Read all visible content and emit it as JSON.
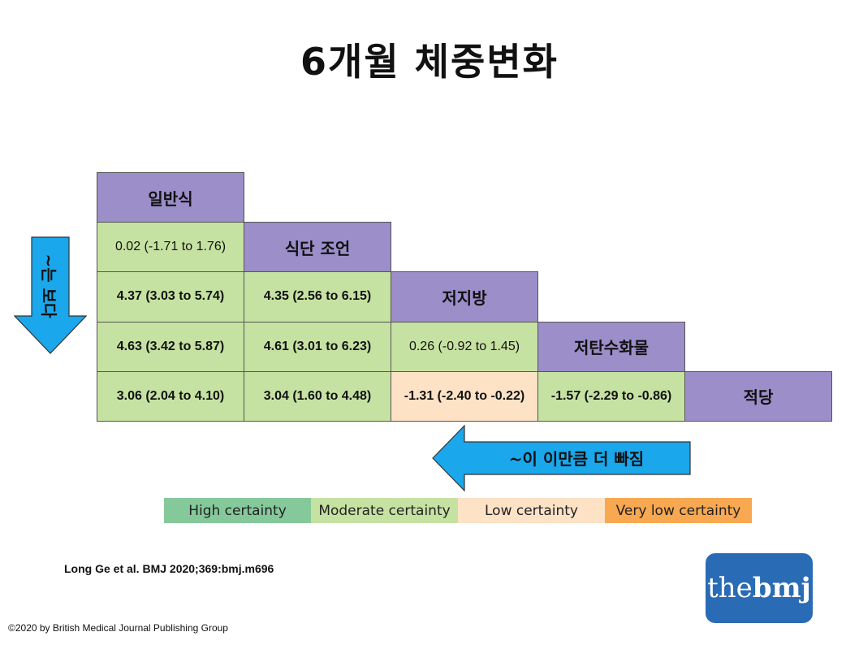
{
  "title": "6개월 체중변화",
  "chart_data": {
    "type": "table",
    "diets": [
      "일반식",
      "식단 조언",
      "저지방",
      "저탄수화물",
      "적당"
    ],
    "rows": [
      {
        "diet": "일반식",
        "cells": []
      },
      {
        "diet": "식단 조언",
        "cells": [
          {
            "text": "0.02 (-1.71 to 1.76)",
            "estimate": 0.02,
            "ci": [
              -1.71,
              1.76
            ],
            "certainty": "Moderate certainty",
            "bold": false
          }
        ]
      },
      {
        "diet": "저지방",
        "cells": [
          {
            "text": "4.37 (3.03 to 5.74)",
            "estimate": 4.37,
            "ci": [
              3.03,
              5.74
            ],
            "certainty": "Moderate certainty",
            "bold": true
          },
          {
            "text": "4.35 (2.56 to 6.15)",
            "estimate": 4.35,
            "ci": [
              2.56,
              6.15
            ],
            "certainty": "Moderate certainty",
            "bold": true
          }
        ]
      },
      {
        "diet": "저탄수화물",
        "cells": [
          {
            "text": "4.63 (3.42 to 5.87)",
            "estimate": 4.63,
            "ci": [
              3.42,
              5.87
            ],
            "certainty": "Moderate certainty",
            "bold": true
          },
          {
            "text": "4.61 (3.01 to 6.23)",
            "estimate": 4.61,
            "ci": [
              3.01,
              6.23
            ],
            "certainty": "Moderate certainty",
            "bold": true
          },
          {
            "text": "0.26 (-0.92 to 1.45)",
            "estimate": 0.26,
            "ci": [
              -0.92,
              1.45
            ],
            "certainty": "Moderate certainty",
            "bold": false
          }
        ]
      },
      {
        "diet": "적당",
        "cells": [
          {
            "text": "3.06 (2.04 to 4.10)",
            "estimate": 3.06,
            "ci": [
              2.04,
              4.1
            ],
            "certainty": "Moderate certainty",
            "bold": true
          },
          {
            "text": "3.04 (1.60 to 4.48)",
            "estimate": 3.04,
            "ci": [
              1.6,
              4.48
            ],
            "certainty": "Moderate certainty",
            "bold": true
          },
          {
            "text": "-1.31 (-2.40 to -0.22)",
            "estimate": -1.31,
            "ci": [
              -2.4,
              -0.22
            ],
            "certainty": "Low certainty",
            "bold": true
          },
          {
            "text": "-1.57 (-2.29 to -0.86)",
            "estimate": -1.57,
            "ci": [
              -2.29,
              -0.86
            ],
            "certainty": "Moderate certainty",
            "bold": true
          }
        ]
      }
    ],
    "legend": [
      {
        "label": "High certainty",
        "color": "#85c99b"
      },
      {
        "label": "Moderate certainty",
        "color": "#c6e2a2"
      },
      {
        "label": "Low certainty",
        "color": "#fde2c6"
      },
      {
        "label": "Very low certainty",
        "color": "#f8a851"
      }
    ]
  },
  "colors": {
    "diet_header": "#9b8ec9",
    "arrow": "#1aa7ec",
    "logo_bg": "#2a6bb5"
  },
  "annotations": {
    "down_arrow_text": "~는 보다",
    "left_arrow_text": "~이 이만큼 더 빠짐"
  },
  "citation": "Long Ge et al. BMJ 2020;369:bmj.m696",
  "copyright": "©2020 by British Medical Journal Publishing Group",
  "logo": {
    "prefix": "the",
    "suffix": "bmj"
  }
}
